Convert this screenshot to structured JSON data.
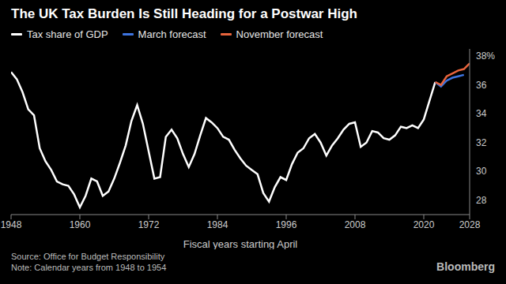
{
  "chart_data": {
    "type": "line",
    "title": "The UK Tax Burden Is Still Heading for a Postwar High",
    "x_label": "Fiscal years starting April",
    "source": "Source: Office for Budget Responsibility",
    "note": "Note: Calendar years from 1948 to 1954",
    "credit": "Bloomberg",
    "legend": "top-left",
    "grid": false,
    "xlim": [
      1948,
      2028
    ],
    "xticks": [
      1948,
      1960,
      1972,
      1984,
      1996,
      2008,
      2020,
      2028
    ],
    "ylim": [
      27,
      38.5
    ],
    "yticks": [
      28,
      30,
      32,
      34,
      36,
      {
        "value": 38,
        "label": "38%"
      }
    ],
    "x": [
      1948,
      1949,
      1950,
      1951,
      1952,
      1953,
      1954,
      1955,
      1956,
      1957,
      1958,
      1959,
      1960,
      1961,
      1962,
      1963,
      1964,
      1965,
      1966,
      1967,
      1968,
      1969,
      1970,
      1971,
      1972,
      1973,
      1974,
      1975,
      1976,
      1977,
      1978,
      1979,
      1980,
      1981,
      1982,
      1983,
      1984,
      1985,
      1986,
      1987,
      1988,
      1989,
      1990,
      1991,
      1992,
      1993,
      1994,
      1995,
      1996,
      1997,
      1998,
      1999,
      2000,
      2001,
      2002,
      2003,
      2004,
      2005,
      2006,
      2007,
      2008,
      2009,
      2010,
      2011,
      2012,
      2013,
      2014,
      2015,
      2016,
      2017,
      2018,
      2019,
      2020,
      2021,
      2022,
      2023,
      2024,
      2025,
      2026,
      2027,
      2028
    ],
    "series": [
      {
        "name": "Tax share of GDP",
        "color": "#ffffff",
        "values": [
          36.9,
          36.4,
          35.5,
          34.3,
          33.9,
          31.6,
          30.7,
          30.1,
          29.3,
          29.1,
          29.0,
          28.4,
          27.5,
          28.3,
          29.5,
          29.3,
          28.3,
          28.6,
          29.5,
          30.6,
          31.8,
          33.5,
          34.6,
          33.3,
          31.4,
          29.5,
          29.6,
          32.4,
          32.9,
          32.3,
          31.2,
          30.3,
          31.2,
          32.5,
          33.7,
          33.4,
          33.0,
          32.4,
          32.2,
          31.5,
          30.9,
          30.4,
          30.1,
          29.8,
          28.5,
          27.9,
          28.9,
          29.6,
          29.4,
          30.5,
          31.3,
          31.6,
          32.3,
          32.6,
          32.0,
          31.1,
          31.8,
          32.3,
          32.9,
          33.3,
          33.4,
          31.7,
          32.0,
          32.8,
          32.7,
          32.3,
          32.2,
          32.5,
          33.1,
          33.0,
          33.2,
          33.0,
          33.6,
          34.9,
          36.2,
          null,
          null,
          null,
          null,
          null,
          null
        ]
      },
      {
        "name": "March forecast",
        "color": "#3d74e0",
        "values": [
          null,
          null,
          null,
          null,
          null,
          null,
          null,
          null,
          null,
          null,
          null,
          null,
          null,
          null,
          null,
          null,
          null,
          null,
          null,
          null,
          null,
          null,
          null,
          null,
          null,
          null,
          null,
          null,
          null,
          null,
          null,
          null,
          null,
          null,
          null,
          null,
          null,
          null,
          null,
          null,
          null,
          null,
          null,
          null,
          null,
          null,
          null,
          null,
          null,
          null,
          null,
          null,
          null,
          null,
          null,
          null,
          null,
          null,
          null,
          null,
          null,
          null,
          null,
          null,
          null,
          null,
          null,
          null,
          null,
          null,
          null,
          null,
          null,
          null,
          36.2,
          35.9,
          36.3,
          36.5,
          36.6,
          36.7,
          null
        ]
      },
      {
        "name": "November forecast",
        "color": "#e8643c",
        "values": [
          null,
          null,
          null,
          null,
          null,
          null,
          null,
          null,
          null,
          null,
          null,
          null,
          null,
          null,
          null,
          null,
          null,
          null,
          null,
          null,
          null,
          null,
          null,
          null,
          null,
          null,
          null,
          null,
          null,
          null,
          null,
          null,
          null,
          null,
          null,
          null,
          null,
          null,
          null,
          null,
          null,
          null,
          null,
          null,
          null,
          null,
          null,
          null,
          null,
          null,
          null,
          null,
          null,
          null,
          null,
          null,
          null,
          null,
          null,
          null,
          null,
          null,
          null,
          null,
          null,
          null,
          null,
          null,
          null,
          null,
          null,
          null,
          null,
          null,
          36.2,
          36.0,
          36.6,
          36.8,
          37.0,
          37.1,
          37.5
        ]
      }
    ]
  }
}
